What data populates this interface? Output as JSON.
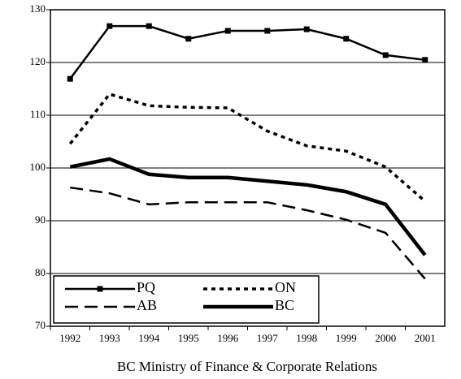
{
  "chart_data": {
    "type": "line",
    "categories": [
      "1992",
      "1993",
      "1994",
      "1995",
      "1996",
      "1997",
      "1998",
      "1999",
      "2000",
      "2001"
    ],
    "x_label": "BC Ministry of Finance & Corporate Relations",
    "series": [
      {
        "name": "PQ",
        "color": "#000000",
        "line_style": "solid",
        "line_width": 2.5,
        "marker": "square",
        "values": [
          116.9,
          126.9,
          126.9,
          124.5,
          126,
          126,
          126.3,
          124.5,
          121.4,
          120.5
        ]
      },
      {
        "name": "ON",
        "color": "#000000",
        "line_style": "dotted",
        "line_width": 3.5,
        "marker": "none",
        "values": [
          104.6,
          114,
          111.8,
          111.5,
          111.4,
          107,
          104.2,
          103.2,
          100.2,
          93.7
        ]
      },
      {
        "name": "AB",
        "color": "#000000",
        "line_style": "dashed",
        "line_width": 2.5,
        "marker": "none",
        "values": [
          96.3,
          95.2,
          93.1,
          93.5,
          93.5,
          93.5,
          92,
          90.2,
          87.7,
          79
        ]
      },
      {
        "name": "BC",
        "color": "#000000",
        "line_style": "solid",
        "line_width": 4.5,
        "marker": "none",
        "values": [
          100.2,
          101.7,
          98.8,
          98.2,
          98.2,
          97.5,
          96.8,
          95.5,
          93.1,
          83.5
        ]
      }
    ],
    "ylim": [
      70,
      130
    ],
    "yticks": [
      70,
      80,
      90,
      100,
      110,
      120,
      130
    ],
    "grid": true,
    "legend": "bottom-left"
  }
}
